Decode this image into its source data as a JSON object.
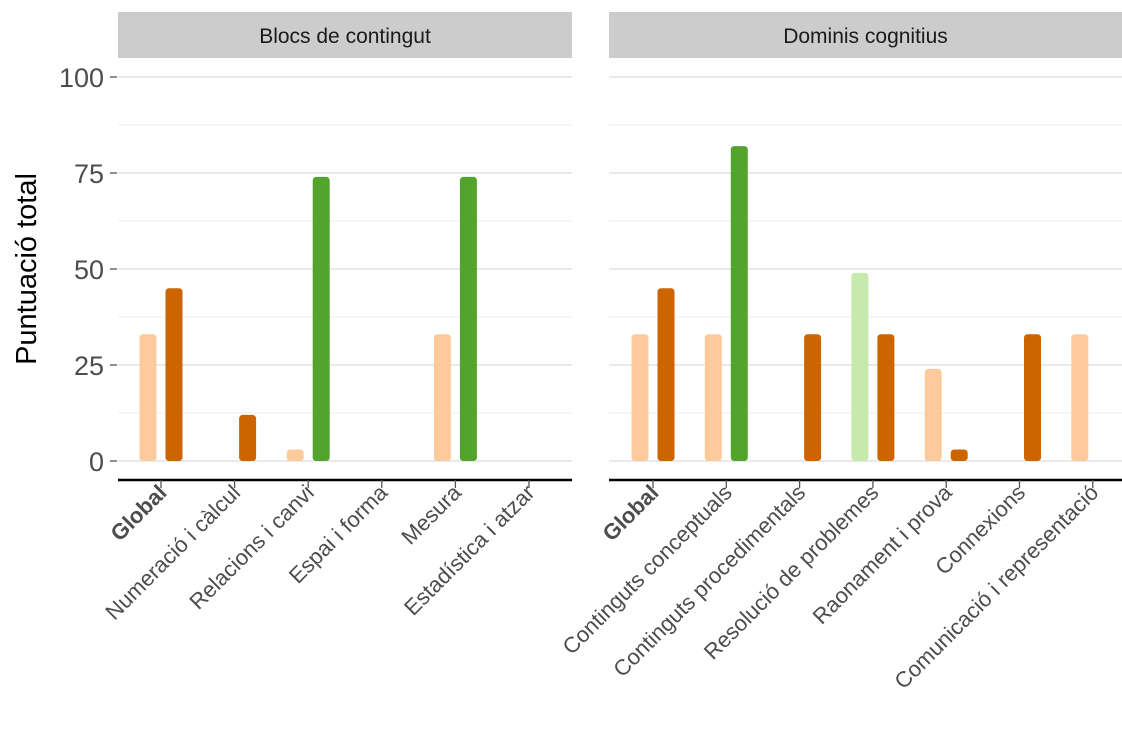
{
  "chart_data": {
    "type": "bar",
    "ylabel": "Puntuació total",
    "ylim": [
      0,
      100
    ],
    "yticks": [
      0,
      25,
      50,
      75,
      100
    ],
    "grid": true,
    "colors": {
      "light-orange": "#fdcb9b",
      "dark-orange": "#cc6500",
      "green": "#52a42d",
      "light-green": "#c5eaac"
    },
    "panels": [
      {
        "title": "Blocs de contingut",
        "categories": [
          "Global",
          "Numeració i càlcul",
          "Relacions i canvi",
          "Espai i forma",
          "Mesura",
          "Estadística i atzar"
        ],
        "bold_categories": [
          "Global"
        ],
        "bars": [
          {
            "category": 0,
            "slot": 0,
            "value": 33,
            "color": "light-orange"
          },
          {
            "category": 0,
            "slot": 1,
            "value": 45,
            "color": "dark-orange"
          },
          {
            "category": 1,
            "slot": 1,
            "value": 12,
            "color": "dark-orange"
          },
          {
            "category": 2,
            "slot": 0,
            "value": 3,
            "color": "light-orange"
          },
          {
            "category": 2,
            "slot": 1,
            "value": 74,
            "color": "green"
          },
          {
            "category": 4,
            "slot": 0,
            "value": 33,
            "color": "light-orange"
          },
          {
            "category": 4,
            "slot": 1,
            "value": 74,
            "color": "green"
          }
        ]
      },
      {
        "title": "Dominis cognitius",
        "categories": [
          "Global",
          "Continguts conceptuals",
          "Continguts procedimentals",
          "Resolució de problemes",
          "Raonament i prova",
          "Connexions",
          "Comunicació i representació"
        ],
        "bold_categories": [
          "Global"
        ],
        "bars": [
          {
            "category": 0,
            "slot": 0,
            "value": 33,
            "color": "light-orange"
          },
          {
            "category": 0,
            "slot": 1,
            "value": 45,
            "color": "dark-orange"
          },
          {
            "category": 1,
            "slot": 0,
            "value": 33,
            "color": "light-orange"
          },
          {
            "category": 1,
            "slot": 1,
            "value": 82,
            "color": "green"
          },
          {
            "category": 2,
            "slot": 1,
            "value": 33,
            "color": "dark-orange"
          },
          {
            "category": 3,
            "slot": 0,
            "value": 49,
            "color": "light-green"
          },
          {
            "category": 3,
            "slot": 1,
            "value": 33,
            "color": "dark-orange"
          },
          {
            "category": 4,
            "slot": 0,
            "value": 24,
            "color": "light-orange"
          },
          {
            "category": 4,
            "slot": 1,
            "value": 3,
            "color": "dark-orange"
          },
          {
            "category": 5,
            "slot": 1,
            "value": 33,
            "color": "dark-orange"
          },
          {
            "category": 6,
            "slot": 0,
            "value": 33,
            "color": "light-orange"
          }
        ]
      }
    ]
  }
}
